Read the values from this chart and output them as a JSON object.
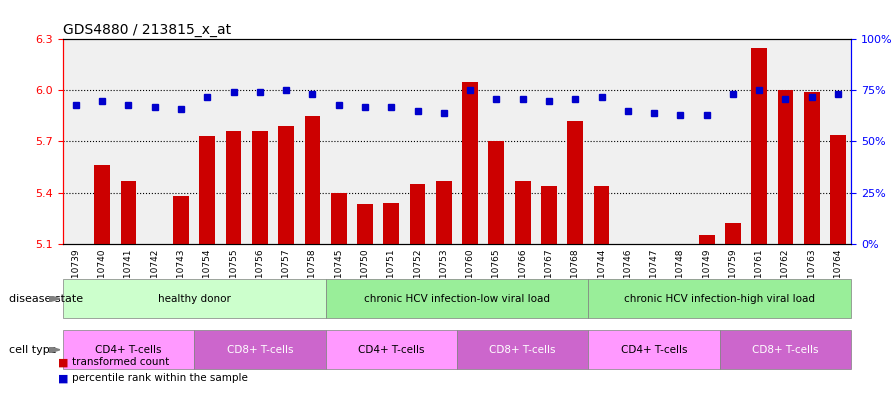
{
  "title": "GDS4880 / 213815_x_at",
  "samples": [
    "GSM1210739",
    "GSM1210740",
    "GSM1210741",
    "GSM1210742",
    "GSM1210743",
    "GSM1210754",
    "GSM1210755",
    "GSM1210756",
    "GSM1210757",
    "GSM1210758",
    "GSM1210745",
    "GSM1210750",
    "GSM1210751",
    "GSM1210752",
    "GSM1210753",
    "GSM1210760",
    "GSM1210765",
    "GSM1210766",
    "GSM1210767",
    "GSM1210768",
    "GSM1210744",
    "GSM1210746",
    "GSM1210747",
    "GSM1210748",
    "GSM1210749",
    "GSM1210759",
    "GSM1210761",
    "GSM1210762",
    "GSM1210763",
    "GSM1210764"
  ],
  "bar_values": [
    5.1,
    5.56,
    5.47,
    5.1,
    5.38,
    5.73,
    5.76,
    5.76,
    5.79,
    5.85,
    5.4,
    5.33,
    5.34,
    5.45,
    5.47,
    6.05,
    5.7,
    5.47,
    5.44,
    5.82,
    5.44,
    5.1,
    5.1,
    5.1,
    5.15,
    5.22,
    6.25,
    6.0,
    5.99,
    5.74
  ],
  "percentile_values": [
    68,
    70,
    68,
    67,
    66,
    72,
    74,
    74,
    75,
    73,
    68,
    67,
    67,
    65,
    64,
    75,
    71,
    71,
    70,
    71,
    72,
    65,
    64,
    63,
    63,
    73,
    75,
    71,
    72,
    73
  ],
  "ylim_left": [
    5.1,
    6.3
  ],
  "ylim_right": [
    0,
    100
  ],
  "yticks_left": [
    5.1,
    5.4,
    5.7,
    6.0,
    6.3
  ],
  "yticks_right": [
    0,
    25,
    50,
    75,
    100
  ],
  "ytick_labels_right": [
    "0%",
    "25%",
    "50%",
    "75%",
    "100%"
  ],
  "bar_color": "#cc0000",
  "percentile_color": "#0000cc",
  "background_color": "#ffffff",
  "plot_bg_color": "#ffffff",
  "grid_color": "#000000",
  "disease_state_groups": [
    {
      "label": "healthy donor",
      "start": 0,
      "end": 9,
      "color": "#ccffcc"
    },
    {
      "label": "chronic HCV infection-low viral load",
      "start": 10,
      "end": 19,
      "color": "#99ff99"
    },
    {
      "label": "chronic HCV infection-high viral load",
      "start": 20,
      "end": 29,
      "color": "#99ff99"
    }
  ],
  "cell_type_groups": [
    {
      "label": "CD4+ T-cells",
      "start": 0,
      "end": 4,
      "color": "#ff99ff"
    },
    {
      "label": "CD8+ T-cells",
      "start": 5,
      "end": 9,
      "color": "#cc66cc"
    },
    {
      "label": "CD4+ T-cells",
      "start": 10,
      "end": 14,
      "color": "#ff99ff"
    },
    {
      "label": "CD8+ T-cells",
      "start": 15,
      "end": 19,
      "color": "#cc66cc"
    },
    {
      "label": "CD4+ T-cells",
      "start": 20,
      "end": 24,
      "color": "#ff99ff"
    },
    {
      "label": "CD8+ T-cells",
      "start": 25,
      "end": 29,
      "color": "#cc66cc"
    }
  ],
  "disease_state_label": "disease state",
  "cell_type_label": "cell type",
  "legend_bar_label": "transformed count",
  "legend_point_label": "percentile rank within the sample"
}
